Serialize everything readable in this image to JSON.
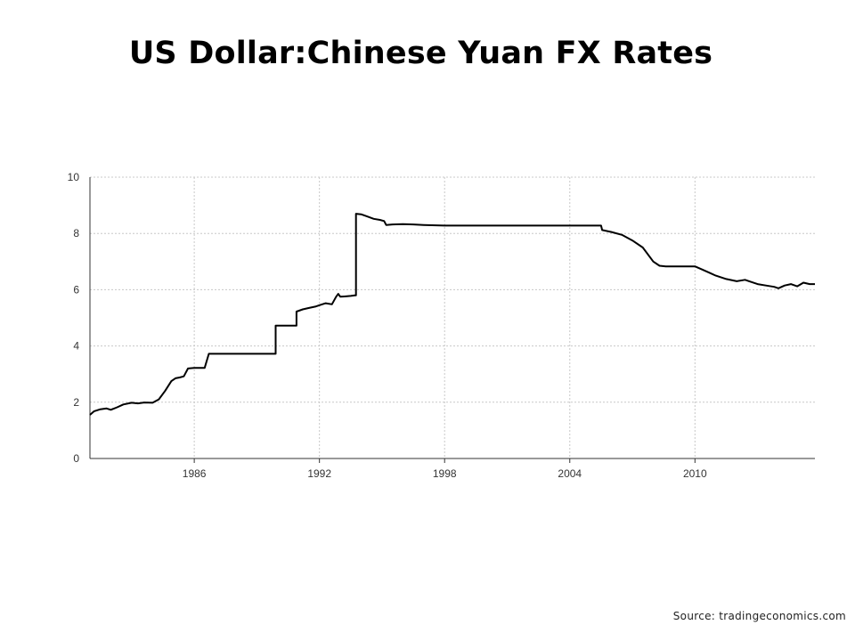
{
  "title": "US Dollar:Chinese Yuan FX Rates",
  "source": "Source: tradingeconomics.com",
  "colors": {
    "line": "#000000",
    "grid": "#c8c8c8",
    "axis": "#333333"
  },
  "chart_data": {
    "type": "line",
    "title": "US Dollar:Chinese Yuan FX Rates",
    "xlabel": "",
    "ylabel": "",
    "xlim": [
      1981.0,
      2015.75
    ],
    "ylim": [
      0,
      10
    ],
    "grid": true,
    "legend": "none",
    "x_ticks": [
      "1986",
      "1992",
      "1998",
      "2004",
      "2010"
    ],
    "y_ticks": [
      "0",
      "2",
      "4",
      "6",
      "8",
      "10"
    ],
    "series": [
      {
        "x": [
          1981.0,
          1981.2,
          1981.5,
          1981.8,
          1982.0,
          1982.3,
          1982.6,
          1983.0,
          1983.3,
          1983.6,
          1984.0,
          1984.3,
          1984.6,
          1984.9,
          1985.1,
          1985.3,
          1985.5,
          1985.7,
          1986.0,
          1986.2,
          1986.5,
          1986.7,
          1986.9,
          1987.2,
          1987.2,
          1987.6,
          1988.0,
          1989.0,
          1989.9,
          1989.9,
          1990.1,
          1990.5,
          1990.8,
          1990.9,
          1990.9,
          1991.2,
          1991.5,
          1991.8,
          1992.0,
          1992.3,
          1992.6,
          1992.8,
          1992.9,
          1993.0,
          1993.2,
          1993.5,
          1993.7,
          1993.75,
          1993.75,
          1994.0,
          1994.3,
          1994.6,
          1994.9,
          1995.1,
          1995.2,
          1995.5,
          1996.0,
          1996.5,
          1997.0,
          1998.0,
          2000.0,
          2002.0,
          2004.0,
          2005.5,
          2005.55,
          2006.0,
          2006.5,
          2007.0,
          2007.5,
          2008.0,
          2008.3,
          2008.6,
          2009.0,
          2009.5,
          2010.0,
          2010.4,
          2010.7,
          2011.0,
          2011.5,
          2012.0,
          2012.4,
          2012.6,
          2013.0,
          2013.4,
          2013.8,
          2014.0,
          2014.3,
          2014.6,
          2014.9,
          2015.2,
          2015.5,
          2015.75
        ],
        "y": [
          1.55,
          1.68,
          1.75,
          1.78,
          1.73,
          1.82,
          1.92,
          1.98,
          1.96,
          1.99,
          1.98,
          2.1,
          2.4,
          2.75,
          2.85,
          2.88,
          2.92,
          3.2,
          3.22,
          3.22,
          3.22,
          3.72,
          3.72,
          3.72,
          3.72,
          3.72,
          3.72,
          3.72,
          3.72,
          4.72,
          4.72,
          4.72,
          4.72,
          4.72,
          5.22,
          5.3,
          5.35,
          5.4,
          5.45,
          5.52,
          5.48,
          5.75,
          5.85,
          5.75,
          5.76,
          5.78,
          5.8,
          5.8,
          8.7,
          8.68,
          8.6,
          8.52,
          8.48,
          8.44,
          8.3,
          8.32,
          8.33,
          8.32,
          8.3,
          8.28,
          8.28,
          8.28,
          8.28,
          8.28,
          8.12,
          8.05,
          7.95,
          7.75,
          7.5,
          7.0,
          6.85,
          6.83,
          6.83,
          6.83,
          6.83,
          6.7,
          6.6,
          6.5,
          6.38,
          6.3,
          6.35,
          6.3,
          6.2,
          6.15,
          6.1,
          6.05,
          6.15,
          6.2,
          6.12,
          6.25,
          6.2,
          6.2
        ]
      }
    ]
  }
}
